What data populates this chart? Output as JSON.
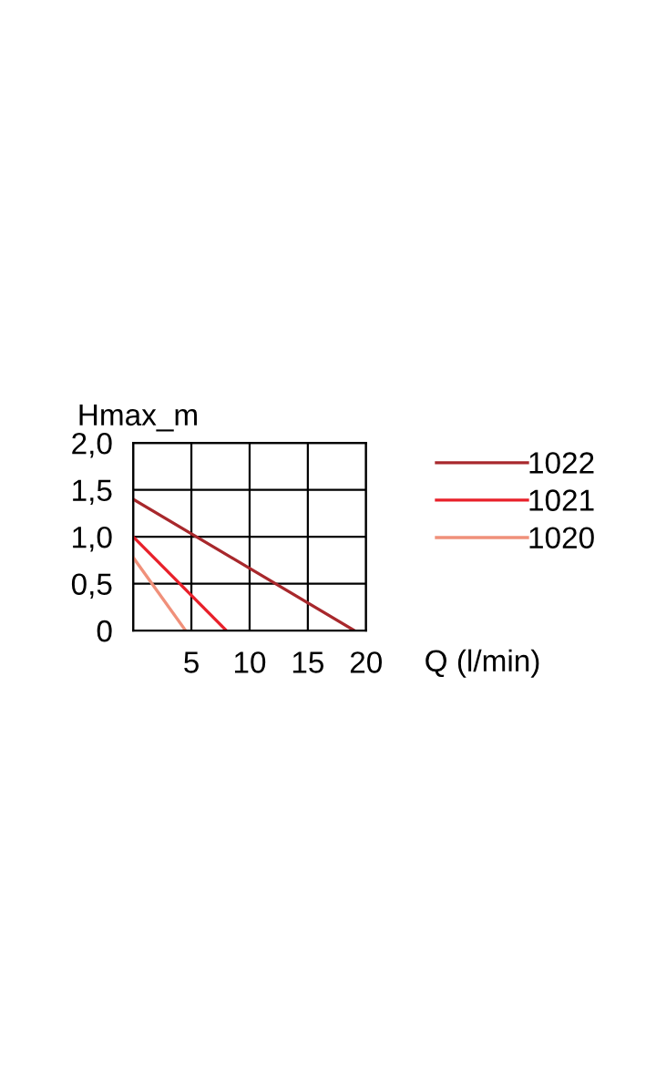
{
  "chart_data": {
    "type": "line",
    "ylabel": "Hmax_m",
    "xlabel": "Q (l/min)",
    "series": [
      {
        "name": "1022",
        "color": "#a8282c",
        "x": [
          0,
          19
        ],
        "values": [
          1.4,
          0
        ]
      },
      {
        "name": "1021",
        "color": "#e8202a",
        "x": [
          0,
          8
        ],
        "values": [
          1.0,
          0
        ]
      },
      {
        "name": "1020",
        "color": "#f0907a",
        "x": [
          0,
          4.5
        ],
        "values": [
          0.78,
          0
        ]
      }
    ],
    "xlim": [
      0,
      20
    ],
    "xticks": [
      {
        "value": 0,
        "label": null
      },
      5,
      10,
      15,
      20
    ],
    "ylim": [
      0,
      2
    ],
    "yticks": [
      0,
      {
        "value": 0.5,
        "label": "0,5"
      },
      {
        "value": 1,
        "label": "1,0"
      },
      {
        "value": 1.5,
        "label": "1,5"
      },
      {
        "value": 2,
        "label": "2,0"
      }
    ],
    "grid": true,
    "legend": "right",
    "marker": "none",
    "line_style": "solid"
  }
}
